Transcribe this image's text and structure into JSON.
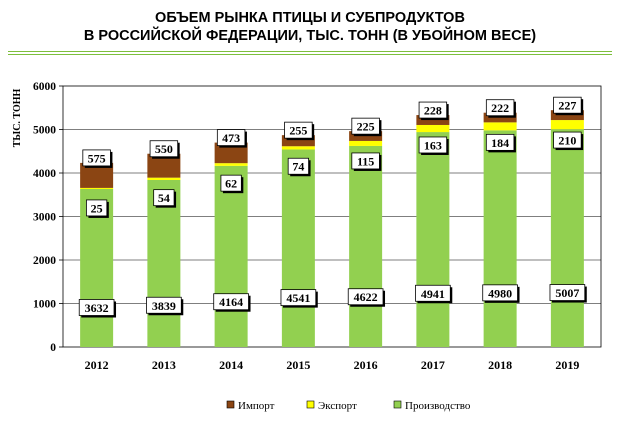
{
  "chart_data": {
    "type": "bar",
    "stacked": true,
    "title": "ОБЪЕМ РЫНКА ПТИЦЫ И СУБПРОДУКТОВ",
    "subtitle": "В РОССИЙСКОЙ ФЕДЕРАЦИИ, ТЫС. ТОНН (В УБОЙНОМ ВЕСЕ)",
    "ylabel": "ТЫС. ТОНН",
    "xlabel": "",
    "ylim": [
      0,
      6000
    ],
    "yticks": [
      "0",
      "1000",
      "2000",
      "3000",
      "4000",
      "5000",
      "6000"
    ],
    "categories": [
      "2012",
      "2013",
      "2014",
      "2015",
      "2016",
      "2017",
      "2018",
      "2019"
    ],
    "series": [
      {
        "name": "Производство",
        "color": "#92d050",
        "values": [
          3632,
          3839,
          4164,
          4541,
          4622,
          4941,
          4980,
          5007
        ]
      },
      {
        "name": "Экспорт",
        "color": "#ffff00",
        "values": [
          25,
          54,
          62,
          74,
          115,
          163,
          184,
          210
        ]
      },
      {
        "name": "Импорт",
        "color": "#8b4513",
        "values": [
          575,
          550,
          473,
          255,
          225,
          228,
          222,
          227
        ]
      }
    ],
    "legend_order": [
      "Импорт",
      "Экспорт",
      "Производство"
    ],
    "grid": true,
    "legend_position": "bottom"
  }
}
